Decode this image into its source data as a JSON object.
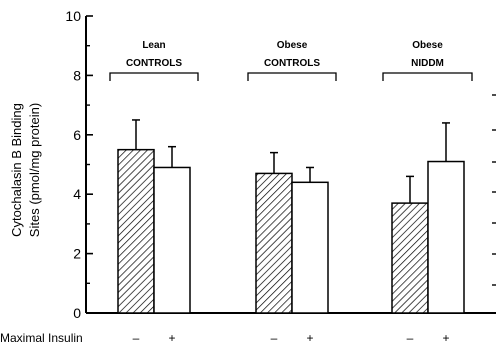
{
  "chart_data": {
    "type": "bar",
    "ylabel_line1": "Cytochalasin B Binding",
    "ylabel_line2": "Sites (pmol/mg protein)",
    "ylim": [
      0,
      10
    ],
    "yticks": [
      "0",
      "2",
      "4",
      "6",
      "8",
      "10"
    ],
    "grid": false,
    "row_label": "Maximal  Insulin",
    "groups": [
      {
        "line1": "Lean",
        "line2": "CONTROLS",
        "bars": [
          {
            "insulin": "–",
            "pattern": "hatched",
            "value": 5.5,
            "error": 1.0
          },
          {
            "insulin": "+",
            "pattern": "open",
            "value": 4.9,
            "error": 0.7
          }
        ]
      },
      {
        "line1": "Obese",
        "line2": "CONTROLS",
        "bars": [
          {
            "insulin": "–",
            "pattern": "hatched",
            "value": 4.7,
            "error": 0.7
          },
          {
            "insulin": "+",
            "pattern": "open",
            "value": 4.4,
            "error": 0.5
          }
        ]
      },
      {
        "line1": "Obese",
        "line2": "NIDDM",
        "bars": [
          {
            "insulin": "–",
            "pattern": "hatched",
            "value": 3.7,
            "error": 0.9
          },
          {
            "insulin": "+",
            "pattern": "open",
            "value": 5.1,
            "error": 1.3
          }
        ]
      }
    ]
  }
}
